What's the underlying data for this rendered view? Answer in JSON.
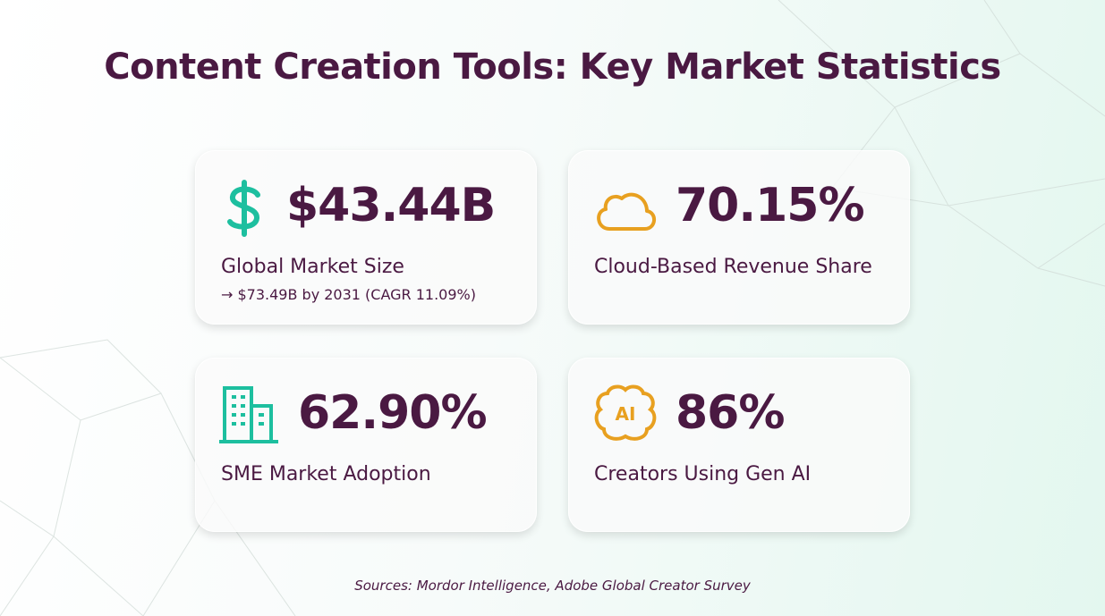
{
  "header": {
    "title": "Content Creation Tools: Key Market Statistics"
  },
  "cards": [
    {
      "value": "$43.44B",
      "label": "Global Market Size",
      "note": "→ $73.49B by 2031 (CAGR 11.09%)"
    },
    {
      "value": "70.15%",
      "label": "Cloud-Based Revenue Share"
    },
    {
      "value": "62.90%",
      "label": "SME Market Adoption"
    },
    {
      "value": "86%",
      "label": "Creators Using Gen AI",
      "icon_text": "AI"
    }
  ],
  "footer": {
    "source": "Sources: Mordor Intelligence, Adobe Global Creator Survey"
  }
}
